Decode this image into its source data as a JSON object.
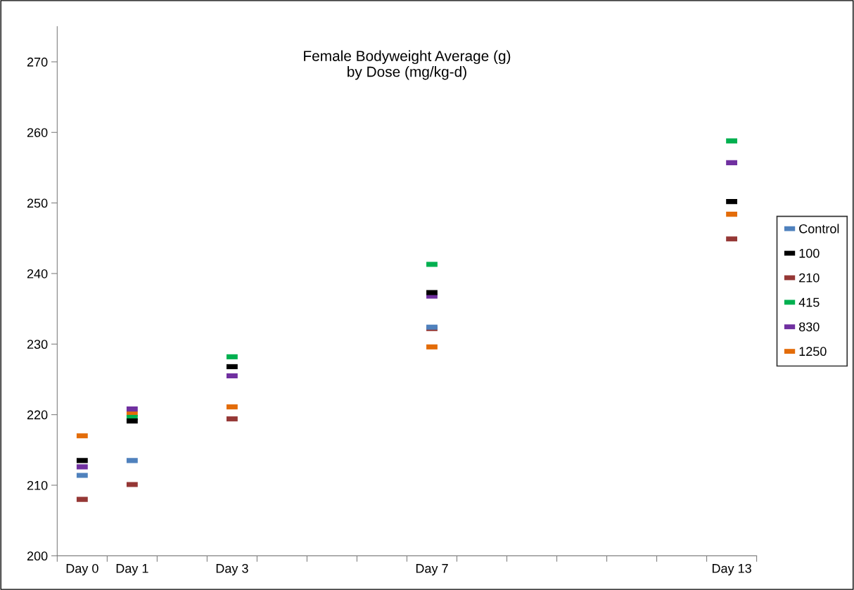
{
  "chart_data": {
    "type": "scatter",
    "title": "Female Bodyweight Average (g)\nby Dose (mg/kg-d)",
    "legend": "right",
    "marker": "square",
    "grid": false,
    "categories": [
      "Day 0",
      "Day 1",
      null,
      "Day 3",
      null,
      null,
      null,
      "Day 7",
      null,
      null,
      null,
      null,
      null,
      "Day 13"
    ],
    "ylim": [
      200,
      275
    ],
    "yticks": [
      200,
      210,
      220,
      230,
      240,
      250,
      260,
      270
    ],
    "series": [
      {
        "name": "Control",
        "color": "#4f81bd",
        "values": [
          211.4,
          213.5,
          null,
          null,
          null,
          null,
          null,
          232.4,
          null,
          null,
          null,
          null,
          null,
          null
        ]
      },
      {
        "name": "100",
        "color": "#000000",
        "values": [
          213.5,
          219.1,
          null,
          226.8,
          null,
          null,
          null,
          237.3,
          null,
          null,
          null,
          null,
          null,
          250.2
        ]
      },
      {
        "name": "210",
        "color": "#953735",
        "values": [
          208.0,
          210.1,
          null,
          219.4,
          null,
          null,
          null,
          232.2,
          null,
          null,
          null,
          null,
          null,
          244.9
        ]
      },
      {
        "name": "415",
        "color": "#00b050",
        "values": [
          null,
          219.6,
          null,
          228.2,
          null,
          null,
          null,
          241.3,
          null,
          null,
          null,
          null,
          null,
          258.8
        ]
      },
      {
        "name": "830",
        "color": "#7030a0",
        "values": [
          212.6,
          220.8,
          null,
          225.5,
          null,
          null,
          null,
          236.8,
          null,
          null,
          null,
          null,
          null,
          255.7
        ]
      },
      {
        "name": "1250",
        "color": "#e36c09",
        "values": [
          217.0,
          220.1,
          null,
          221.1,
          null,
          null,
          null,
          229.6,
          null,
          null,
          null,
          null,
          null,
          248.4
        ]
      }
    ]
  }
}
